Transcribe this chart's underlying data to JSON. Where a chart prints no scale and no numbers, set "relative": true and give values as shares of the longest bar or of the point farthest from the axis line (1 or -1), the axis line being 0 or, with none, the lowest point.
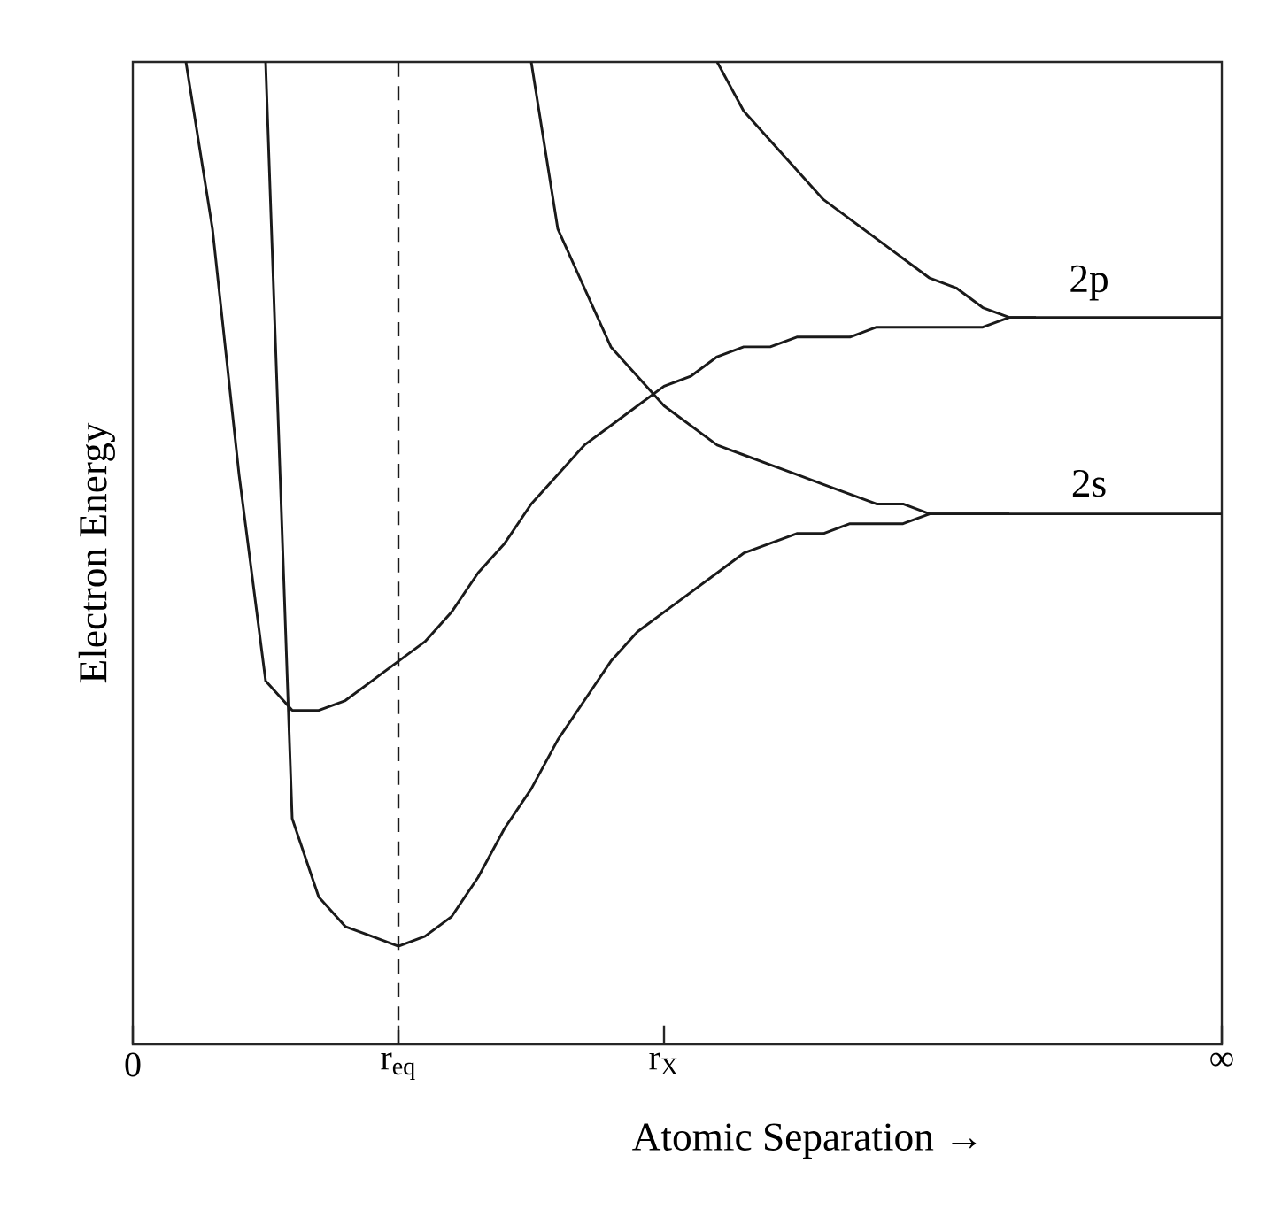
{
  "chart_data": {
    "type": "line",
    "relative": true,
    "xlabel": "Atomic Separation →",
    "ylabel": "Electron Energy",
    "categories": [
      "0",
      null,
      null,
      null,
      null,
      null,
      null,
      null,
      null,
      null,
      "r$_{eq}$",
      null,
      null,
      null,
      null,
      null,
      null,
      null,
      null,
      null,
      "r$_{X}$",
      null,
      null,
      null,
      null,
      null,
      null,
      null,
      null,
      null,
      null,
      null,
      null,
      null,
      null,
      null,
      null,
      null,
      null,
      null,
      null,
      "∞"
    ],
    "series": [
      {
        "name": "2p",
        "color": "#1a1a1a",
        "values": [
          null,
          null,
          1.0,
          0.83,
          0.58,
          0.37,
          0.34,
          0.34,
          0.35,
          0.37,
          0.39,
          0.41,
          0.44,
          0.48,
          0.51,
          0.55,
          0.58,
          0.61,
          0.63,
          0.65,
          0.67,
          0.68,
          0.7,
          0.71,
          0.71,
          0.72,
          0.72,
          0.72,
          0.73,
          0.73,
          0.73,
          0.73,
          0.73,
          0.74,
          0.74,
          0.74,
          0.74,
          0.74,
          0.74,
          0.74,
          0.74,
          0.74
        ]
      },
      {
        "name": "2s",
        "color": "#1a1a1a",
        "values": [
          null,
          null,
          null,
          null,
          null,
          1.0,
          0.23,
          0.15,
          0.12,
          0.11,
          0.1,
          0.11,
          0.13,
          0.17,
          0.22,
          0.26,
          0.31,
          0.35,
          0.39,
          0.42,
          0.44,
          0.46,
          0.48,
          0.5,
          0.51,
          0.52,
          0.52,
          0.53,
          0.53,
          0.53,
          0.54,
          0.54,
          0.54,
          0.54,
          0.54,
          0.54,
          0.54,
          0.54,
          0.54,
          0.54,
          0.54,
          0.54
        ]
      },
      {
        "color": "#1a1a1a",
        "values": [
          null,
          null,
          null,
          null,
          null,
          null,
          null,
          null,
          null,
          null,
          null,
          null,
          null,
          null,
          null,
          1.0,
          0.83,
          0.77,
          0.71,
          0.68,
          0.65,
          0.63,
          0.61,
          0.6,
          0.59,
          0.58,
          0.57,
          0.56,
          0.55,
          0.55,
          0.54,
          0.54,
          0.54,
          0.54,
          null,
          null,
          null,
          null,
          null,
          null,
          null,
          null
        ]
      },
      {
        "color": "#1a1a1a",
        "values": [
          null,
          null,
          null,
          null,
          null,
          null,
          null,
          null,
          null,
          null,
          null,
          null,
          null,
          null,
          null,
          null,
          null,
          null,
          null,
          null,
          null,
          null,
          1.0,
          0.95,
          0.92,
          0.89,
          0.86,
          0.84,
          0.82,
          0.8,
          0.78,
          0.77,
          0.75,
          0.74,
          0.74,
          null,
          null,
          null,
          null,
          null,
          null,
          null
        ]
      }
    ],
    "ref_lines": [
      {
        "axis": "x",
        "value": "r$_{eq}$",
        "color": "#1a1a1a",
        "line_style": "dashed"
      }
    ]
  }
}
